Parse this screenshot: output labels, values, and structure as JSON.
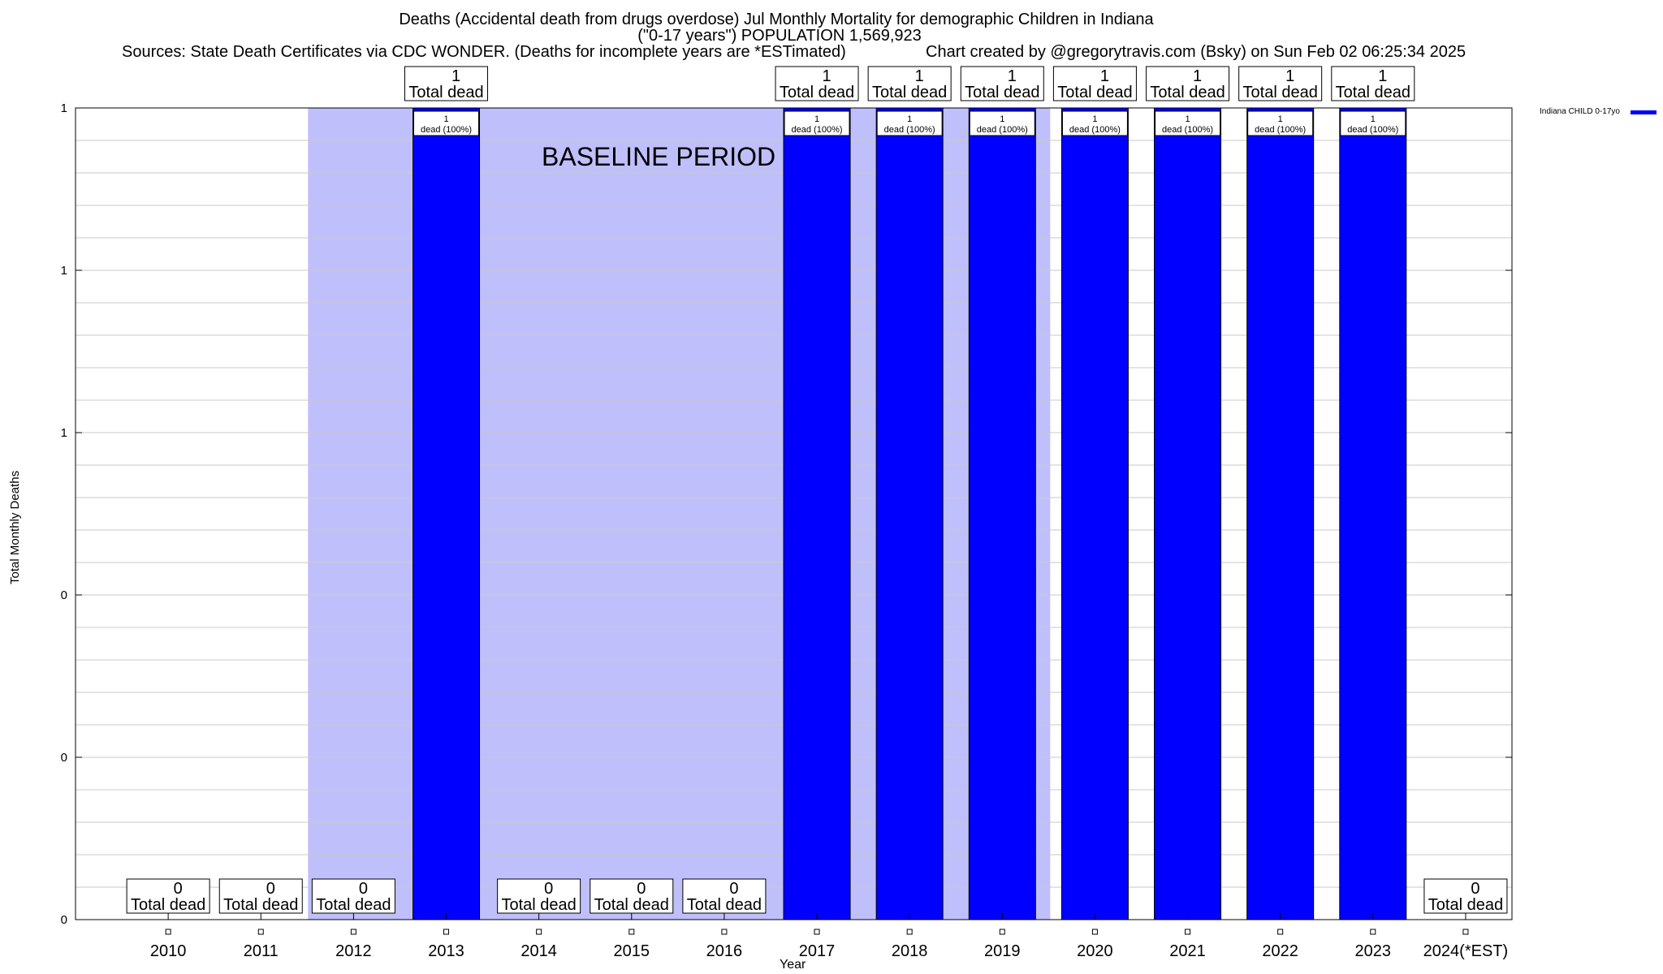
{
  "header": {
    "title_line1": "Deaths (Accidental death from drugs overdose) Jul Monthly Mortality for demographic Children in Indiana",
    "title_line2": "(\"0-17 years\") POPULATION 1,569,923",
    "sources": "Sources: State Death Certificates via CDC WONDER. (Deaths for incomplete years are *ESTimated)",
    "credit": "Chart created by @gregorytravis.com (Bsky) on Sun Feb 02 06:25:34 2025"
  },
  "colors": {
    "bar": "#0000ff",
    "baseline_band": "#bfbffb",
    "grid": "#c8c8c8"
  },
  "chart_data": {
    "type": "bar",
    "categories": [
      "2010",
      "2011",
      "2012",
      "2013",
      "2014",
      "2015",
      "2016",
      "2017",
      "2018",
      "2019",
      "2020",
      "2021",
      "2022",
      "2023",
      "2024(*EST)"
    ],
    "series": [
      {
        "name": "Indiana CHILD 0-17yo",
        "values": [
          0,
          0,
          0,
          1,
          0,
          0,
          0,
          1,
          1,
          1,
          1,
          1,
          1,
          1,
          0
        ]
      }
    ],
    "total_label_numbers": [
      "0",
      "0",
      "0",
      "1",
      "0",
      "0",
      "0",
      "1",
      "1",
      "1",
      "1",
      "1",
      "1",
      "1",
      "0"
    ],
    "total_label_text": "Total dead",
    "bar_label_numbers": [
      "",
      "",
      "",
      "1",
      "",
      "",
      "",
      "1",
      "1",
      "1",
      "1",
      "1",
      "1",
      "1",
      ""
    ],
    "bar_label_text": "dead (100%)",
    "ytick_labels": [
      "0",
      "0",
      "0",
      "1",
      "1",
      "1"
    ],
    "ylim": [
      0,
      1
    ],
    "ylabel": "Total Monthly Deaths",
    "xlabel": "Year",
    "annotation": "BASELINE PERIOD",
    "baseline_period": {
      "start": "2012",
      "end": "2019"
    },
    "legend": "top-right",
    "grid": true
  }
}
